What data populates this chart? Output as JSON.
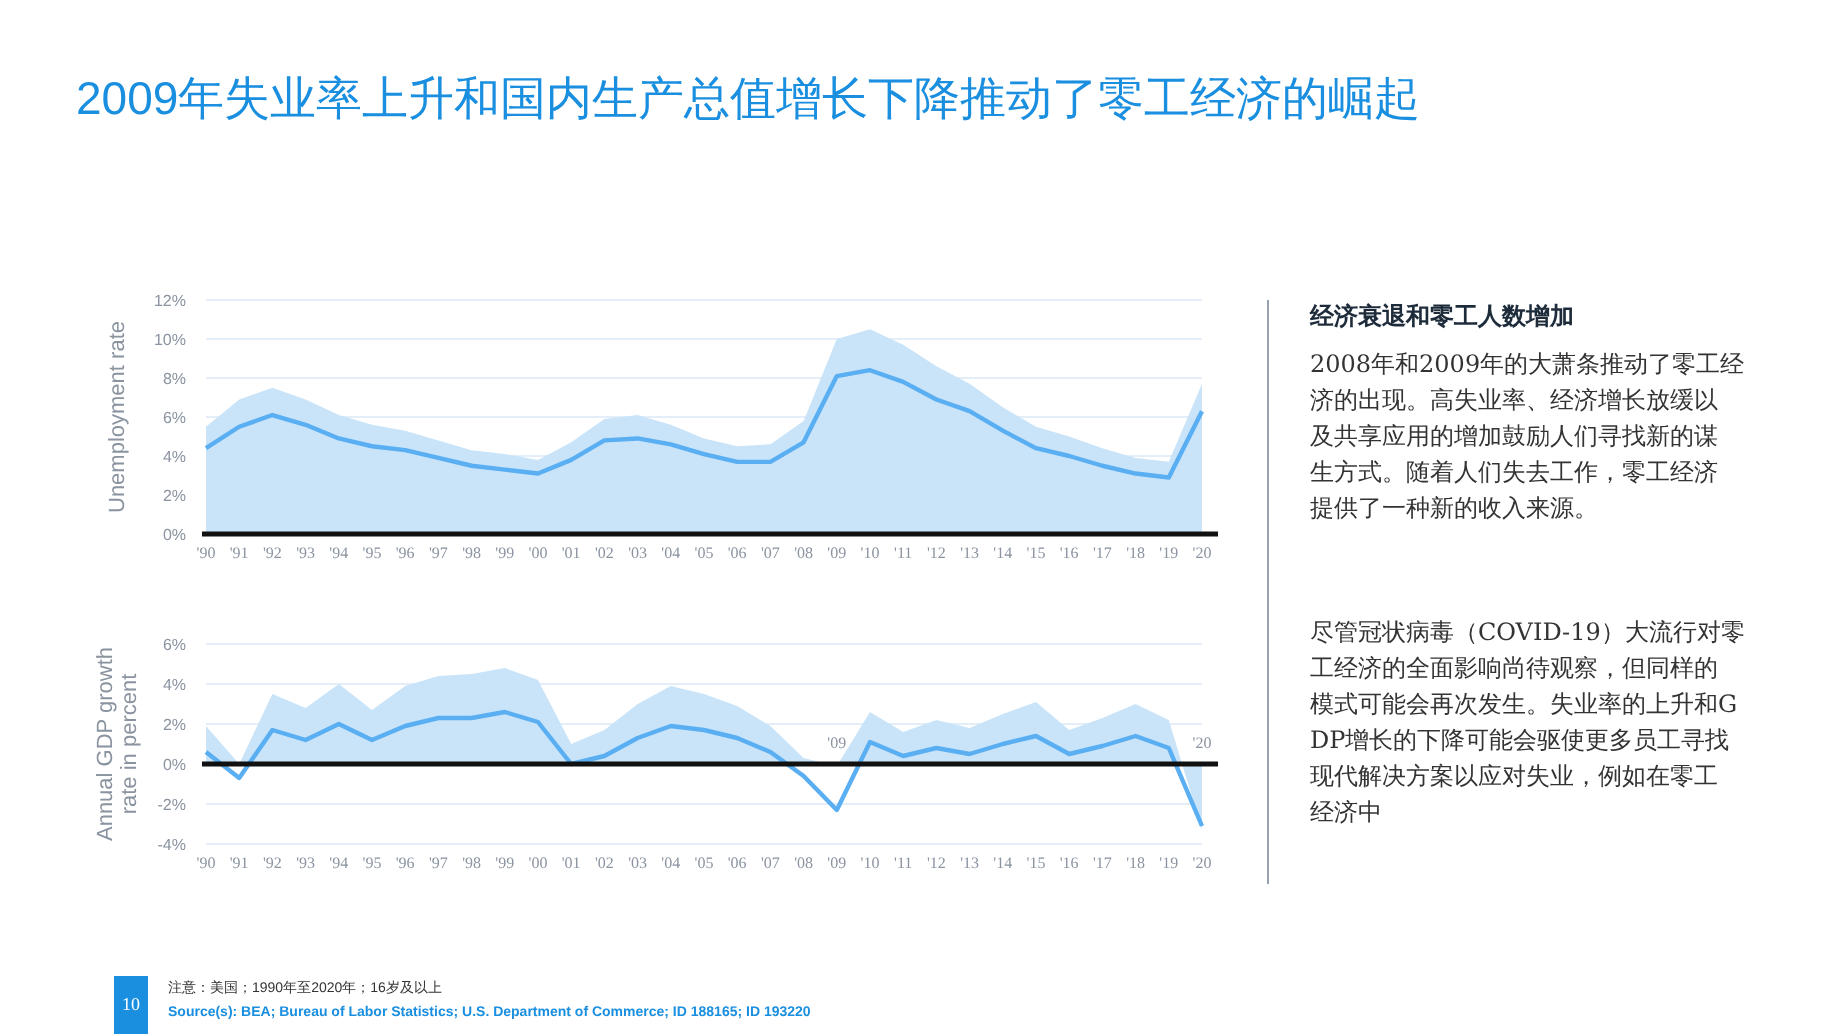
{
  "chart_data": [
    {
      "type": "line",
      "title": "2009年失业率上升和国内生产总值增长下降推动了零工经济的崛起",
      "ylabel": "Unemployment rate",
      "categories": [
        "'90",
        "'91",
        "'92",
        "'93",
        "'94",
        "'95",
        "'96",
        "'97",
        "'98",
        "'99",
        "'00",
        "'01",
        "'02",
        "'03",
        "'04",
        "'05",
        "'06",
        "'07",
        "'08",
        "'09",
        "'10",
        "'11",
        "'12",
        "'13",
        "'14",
        "'15",
        "'16",
        "'17",
        "'18",
        "'19",
        "'20"
      ],
      "series": [
        {
          "type": "area",
          "color": "#c9e4f9",
          "values": [
            5.5,
            6.9,
            7.5,
            6.9,
            6.1,
            5.6,
            5.3,
            4.8,
            4.3,
            4.1,
            3.8,
            4.7,
            5.9,
            6.1,
            5.6,
            4.9,
            4.5,
            4.6,
            5.8,
            10.0,
            10.5,
            9.7,
            8.6,
            7.7,
            6.5,
            5.5,
            5.0,
            4.4,
            3.9,
            3.7,
            7.7
          ]
        },
        {
          "type": "line",
          "color": "#5aaef2",
          "values": [
            4.4,
            5.5,
            6.1,
            5.6,
            4.9,
            4.5,
            4.3,
            3.9,
            3.5,
            3.3,
            3.1,
            3.8,
            4.8,
            4.9,
            4.6,
            4.1,
            3.7,
            3.7,
            4.7,
            8.1,
            8.4,
            7.8,
            6.9,
            6.3,
            5.3,
            4.4,
            4.0,
            3.5,
            3.1,
            2.9,
            6.3
          ]
        }
      ],
      "ylim": [
        0,
        12
      ],
      "yticks": [
        {
          "value": 0,
          "label": "0%"
        },
        {
          "value": 2,
          "label": "2%"
        },
        {
          "value": 4,
          "label": "4%"
        },
        {
          "value": 6,
          "label": "6%"
        },
        {
          "value": 8,
          "label": "8%"
        },
        {
          "value": 10,
          "label": "10%"
        },
        {
          "value": 12,
          "label": "12%"
        }
      ],
      "grid": "y",
      "marker": "none",
      "line_style": "solid"
    },
    {
      "type": "line",
      "ylabel": "Annual GDP growth rate in percent",
      "categories": [
        "'90",
        "'91",
        "'92",
        "'93",
        "'94",
        "'95",
        "'96",
        "'97",
        "'98",
        "'99",
        "'00",
        "'01",
        "'02",
        "'03",
        "'04",
        "'05",
        "'06",
        "'07",
        "'08",
        "'09",
        "'10",
        "'11",
        "'12",
        "'13",
        "'14",
        "'15",
        "'16",
        "'17",
        "'18",
        "'19",
        "'20"
      ],
      "series": [
        {
          "type": "area",
          "color": "#c9e4f9",
          "values": [
            1.9,
            0.0,
            3.5,
            2.8,
            4.0,
            2.7,
            3.9,
            4.4,
            4.5,
            4.8,
            4.2,
            1.0,
            1.7,
            3.0,
            3.9,
            3.5,
            2.9,
            1.9,
            0.3,
            -0.1,
            2.6,
            1.6,
            2.2,
            1.8,
            2.5,
            3.1,
            1.7,
            2.3,
            3.0,
            2.2,
            -3.3
          ]
        },
        {
          "type": "line",
          "color": "#5aaef2",
          "values": [
            0.6,
            -0.7,
            1.7,
            1.2,
            2.0,
            1.2,
            1.9,
            2.3,
            2.3,
            2.6,
            2.1,
            0.0,
            0.4,
            1.3,
            1.9,
            1.7,
            1.3,
            0.6,
            -0.6,
            -2.3,
            1.1,
            0.4,
            0.8,
            0.5,
            1.0,
            1.4,
            0.5,
            0.9,
            1.4,
            0.8,
            -3.1
          ]
        }
      ],
      "ylim": [
        -4,
        6
      ],
      "yticks": [
        {
          "value": -4,
          "label": "-4%"
        },
        {
          "value": -2,
          "label": "-2%"
        },
        {
          "value": 0,
          "label": "0%"
        },
        {
          "value": 2,
          "label": "2%"
        },
        {
          "value": 4,
          "label": "4%"
        },
        {
          "value": 6,
          "label": "6%"
        }
      ],
      "grid": "y",
      "marker": "none",
      "line_style": "solid",
      "annotations": [
        {
          "text": "'09",
          "x": "'09",
          "y": 0
        },
        {
          "text": "'20",
          "x": "'20",
          "y": 0
        },
        "10",
        "注意：美国；1990年至2020年；16岁及以上",
        "Source(s): BEA; Bureau of Labor Statistics; U.S. Department of Commerce; ID 188165; ID 193220"
      ]
    },
    {
      "type": "other",
      "title": "经济衰退和零工人数增加",
      "annotations": [
        "2008年和2009年的大萧条推动了零工经济的出现。高失业率、经济增长放缓以及共享应用的增加鼓励人们寻找新的谋生方式。随着人们失去工作，零工经济提供了一种新的收入来源。",
        "尽管冠状病毒（COVID-19）大流行对零工经济的全面影响尚待观察，但同样的模式可能会再次发生。失业率的上升和GDP增长的下降可能会驱使更多员工寻找现代解决方案以应对失业，例如在零工经济中"
      ]
    }
  ]
}
